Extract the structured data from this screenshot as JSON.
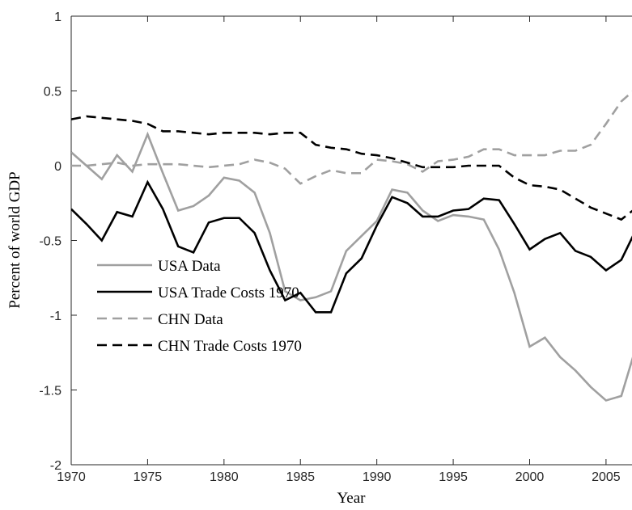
{
  "chart_data": {
    "type": "line",
    "x_label": "Year",
    "y_label": "Percent of world GDP",
    "x": [
      1970,
      1971,
      1972,
      1973,
      1974,
      1975,
      1976,
      1977,
      1978,
      1979,
      1980,
      1981,
      1982,
      1983,
      1984,
      1985,
      1986,
      1987,
      1988,
      1989,
      1990,
      1991,
      1992,
      1993,
      1994,
      1995,
      1996,
      1997,
      1998,
      1999,
      2000,
      2001,
      2002,
      2003,
      2004,
      2005,
      2006,
      2007
    ],
    "xlim": [
      1970,
      2006.7
    ],
    "xticks": [
      1970,
      1975,
      1980,
      1985,
      1990,
      1995,
      2000,
      2005
    ],
    "ylim": [
      -2,
      1
    ],
    "yticks": [
      1,
      0.5,
      0,
      -0.5,
      -1,
      -1.5,
      -2
    ],
    "legend": "lower left",
    "series": [
      {
        "name": "USA Data",
        "color": "#a0a0a0",
        "linestyle": "solid",
        "values": [
          0.09,
          0.0,
          -0.09,
          0.07,
          -0.04,
          0.21,
          -0.05,
          -0.3,
          -0.27,
          -0.2,
          -0.08,
          -0.1,
          -0.18,
          -0.45,
          -0.84,
          -0.9,
          -0.88,
          -0.84,
          -0.57,
          -0.47,
          -0.37,
          -0.16,
          -0.18,
          -0.3,
          -0.37,
          -0.33,
          -0.34,
          -0.36,
          -0.56,
          -0.85,
          -1.21,
          -1.15,
          -1.28,
          -1.37,
          -1.48,
          -1.57,
          -1.54,
          -1.2
        ]
      },
      {
        "name": "USA Trade Costs 1970",
        "color": "#000000",
        "linestyle": "solid",
        "values": [
          -0.29,
          -0.39,
          -0.5,
          -0.31,
          -0.34,
          -0.11,
          -0.29,
          -0.54,
          -0.58,
          -0.38,
          -0.35,
          -0.35,
          -0.45,
          -0.7,
          -0.9,
          -0.85,
          -0.98,
          -0.98,
          -0.72,
          -0.62,
          -0.4,
          -0.21,
          -0.25,
          -0.34,
          -0.34,
          -0.3,
          -0.29,
          -0.22,
          -0.23,
          -0.39,
          -0.56,
          -0.49,
          -0.45,
          -0.57,
          -0.61,
          -0.7,
          -0.63,
          -0.42
        ]
      },
      {
        "name": "CHN Data",
        "color": "#a0a0a0",
        "linestyle": "dashed",
        "values": [
          0.0,
          0.0,
          0.01,
          0.02,
          0.0,
          0.01,
          0.01,
          0.01,
          0.0,
          -0.01,
          0.0,
          0.01,
          0.04,
          0.02,
          -0.02,
          -0.12,
          -0.07,
          -0.03,
          -0.05,
          -0.05,
          0.04,
          0.03,
          0.01,
          -0.04,
          0.03,
          0.04,
          0.06,
          0.11,
          0.11,
          0.07,
          0.07,
          0.07,
          0.1,
          0.1,
          0.14,
          0.28,
          0.43,
          0.52
        ]
      },
      {
        "name": "CHN Trade Costs 1970",
        "color": "#000000",
        "linestyle": "dashed",
        "values": [
          0.31,
          0.33,
          0.32,
          0.31,
          0.3,
          0.28,
          0.23,
          0.23,
          0.22,
          0.21,
          0.22,
          0.22,
          0.22,
          0.21,
          0.22,
          0.22,
          0.14,
          0.12,
          0.11,
          0.08,
          0.07,
          0.05,
          0.02,
          -0.01,
          -0.01,
          -0.01,
          0.0,
          0.0,
          0.0,
          -0.08,
          -0.13,
          -0.14,
          -0.16,
          -0.22,
          -0.28,
          -0.32,
          -0.36,
          -0.28
        ]
      }
    ]
  }
}
